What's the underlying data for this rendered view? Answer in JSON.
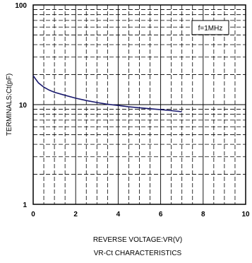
{
  "chart_data": {
    "type": "line",
    "title": "VR-Ct CHARACTERISTICS",
    "xlabel": "REVERSE VOLTAGE:VR(V)",
    "ylabel": "TERMINALS:Ct(pF)",
    "annotation": "f=1MHz",
    "x_scale": "linear",
    "y_scale": "log",
    "xlim": [
      0,
      10
    ],
    "ylim": [
      1,
      100
    ],
    "x_ticks": [
      "0",
      "2",
      "4",
      "6",
      "8",
      "10"
    ],
    "y_ticks": [
      "1",
      "10",
      "100"
    ],
    "grid": true,
    "grid_style": "dashed minor, solid major",
    "colors": {
      "series": "#1a1a6e",
      "grid": "#000000"
    },
    "series": [
      {
        "x": [
          0,
          0.25,
          0.5,
          0.75,
          1.0,
          1.5,
          2.0,
          2.5,
          3.0,
          3.5,
          4.0,
          4.5,
          5.0,
          5.5,
          6.0,
          6.5,
          7.0
        ],
        "y": [
          19.5,
          16.5,
          15.0,
          14.0,
          13.3,
          12.4,
          11.6,
          11.0,
          10.5,
          10.1,
          9.8,
          9.5,
          9.3,
          9.1,
          8.9,
          8.7,
          8.5
        ]
      }
    ]
  }
}
